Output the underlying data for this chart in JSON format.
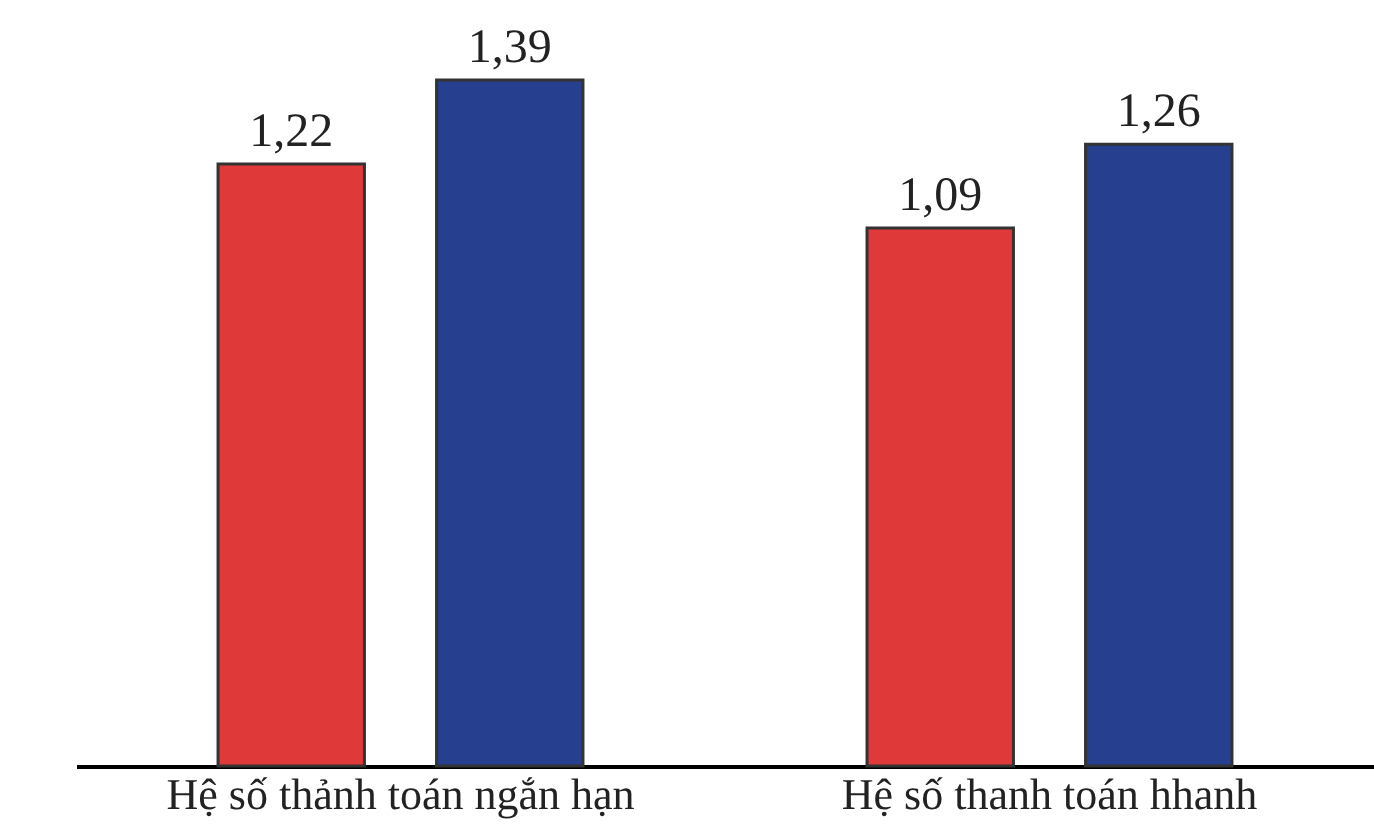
{
  "chart_data": {
    "type": "bar",
    "categories": [
      "Hệ số thảnh toán ngắn hạn",
      "Hệ số thanh toán hhanh"
    ],
    "series": [
      {
        "color": "#e0393a",
        "values": [
          1.22,
          1.09
        ],
        "value_labels": [
          "1,22",
          "1,09"
        ]
      },
      {
        "color": "#263f8e",
        "values": [
          1.39,
          1.26
        ],
        "value_labels": [
          "1,39",
          "1,26"
        ]
      }
    ],
    "grid": false,
    "legend": false
  }
}
